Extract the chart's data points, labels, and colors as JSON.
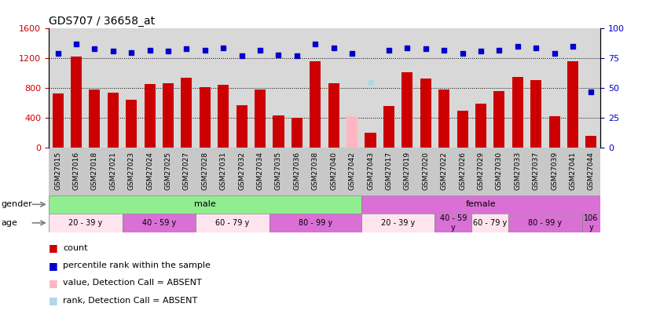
{
  "title": "GDS707 / 36658_at",
  "samples": [
    "GSM27015",
    "GSM27016",
    "GSM27018",
    "GSM27021",
    "GSM27023",
    "GSM27024",
    "GSM27025",
    "GSM27027",
    "GSM27028",
    "GSM27031",
    "GSM27032",
    "GSM27034",
    "GSM27035",
    "GSM27036",
    "GSM27038",
    "GSM27040",
    "GSM27042",
    "GSM27043",
    "GSM27017",
    "GSM27019",
    "GSM27020",
    "GSM27022",
    "GSM27026",
    "GSM27029",
    "GSM27030",
    "GSM27033",
    "GSM27037",
    "GSM27039",
    "GSM27041",
    "GSM27044"
  ],
  "count_values": [
    730,
    1220,
    780,
    740,
    640,
    860,
    870,
    940,
    810,
    840,
    570,
    780,
    430,
    400,
    1160,
    870,
    420,
    200,
    560,
    1010,
    930,
    780,
    500,
    590,
    760,
    950,
    910,
    420,
    1160,
    160
  ],
  "percentile_values": [
    79,
    87,
    83,
    81,
    80,
    82,
    81,
    83,
    82,
    84,
    77,
    82,
    78,
    77,
    87,
    84,
    79,
    55,
    82,
    84,
    83,
    82,
    79,
    81,
    82,
    85,
    84,
    79,
    85,
    47
  ],
  "absent_count_idx": [
    16
  ],
  "absent_rank_idx": [
    17
  ],
  "gender_groups": [
    {
      "label": "male",
      "start": 0,
      "end": 17,
      "color": "#90EE90"
    },
    {
      "label": "female",
      "start": 17,
      "end": 30,
      "color": "#DA70D6"
    }
  ],
  "age_groups": [
    {
      "label": "20 - 39 y",
      "start": 0,
      "end": 4,
      "color": "#FFE4F0"
    },
    {
      "label": "40 - 59 y",
      "start": 4,
      "end": 8,
      "color": "#DA70D6"
    },
    {
      "label": "60 - 79 y",
      "start": 8,
      "end": 12,
      "color": "#FFE4F0"
    },
    {
      "label": "80 - 99 y",
      "start": 12,
      "end": 17,
      "color": "#DA70D6"
    },
    {
      "label": "20 - 39 y",
      "start": 17,
      "end": 21,
      "color": "#FFE4F0"
    },
    {
      "label": "40 - 59\ny",
      "start": 21,
      "end": 23,
      "color": "#DA70D6"
    },
    {
      "label": "60 - 79 y",
      "start": 23,
      "end": 25,
      "color": "#FFE4F0"
    },
    {
      "label": "80 - 99 y",
      "start": 25,
      "end": 29,
      "color": "#DA70D6"
    },
    {
      "label": "106\ny",
      "start": 29,
      "end": 30,
      "color": "#DA70D6"
    }
  ],
  "ylim_left": [
    0,
    1600
  ],
  "ylim_right": [
    0,
    100
  ],
  "yticks_left": [
    0,
    400,
    800,
    1200,
    1600
  ],
  "yticks_right": [
    0,
    25,
    50,
    75,
    100
  ],
  "bar_color": "#CC0000",
  "absent_bar_color": "#FFB6C1",
  "dot_color": "#0000CC",
  "absent_dot_color": "#ADD8E6",
  "bg_color": "#D8D8D8",
  "tick_bg_color": "#C8C8C8",
  "legend": [
    {
      "label": "count",
      "color": "#CC0000"
    },
    {
      "label": "percentile rank within the sample",
      "color": "#0000CC"
    },
    {
      "label": "value, Detection Call = ABSENT",
      "color": "#FFB6C1"
    },
    {
      "label": "rank, Detection Call = ABSENT",
      "color": "#ADD8E6"
    }
  ]
}
